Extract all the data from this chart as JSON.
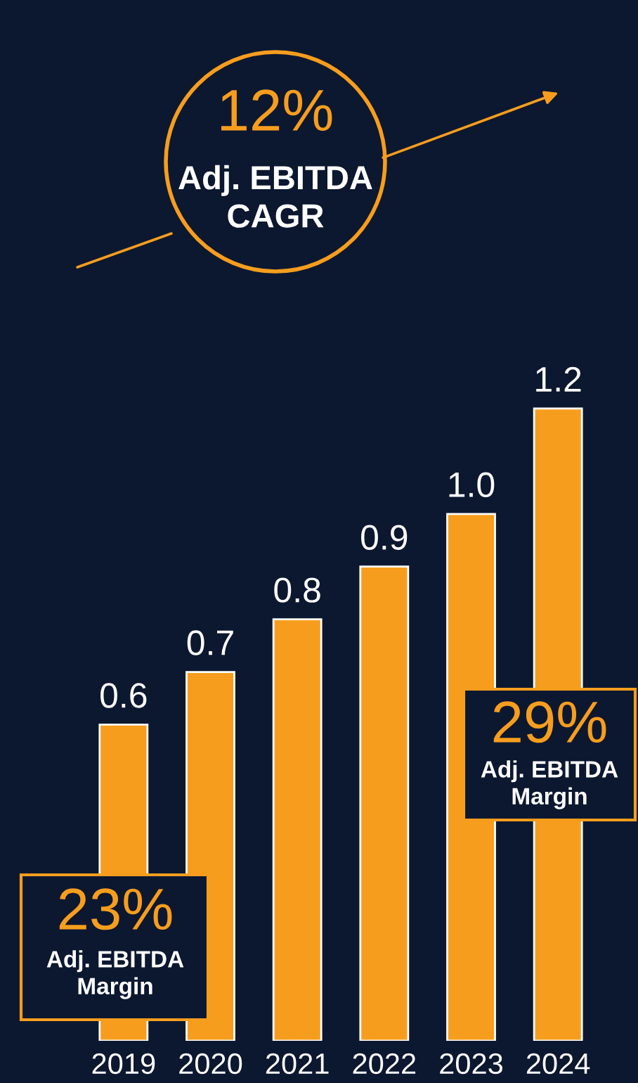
{
  "chart_data": {
    "type": "bar",
    "categories": [
      "2019",
      "2020",
      "2021",
      "2022",
      "2023",
      "2024"
    ],
    "values": [
      0.6,
      0.7,
      0.8,
      0.9,
      1.0,
      1.2
    ],
    "value_labels": [
      "0.6",
      "0.7",
      "0.8",
      "0.9",
      "1.0",
      "1.2"
    ],
    "color": "#f79d1e",
    "grid": false,
    "legend": false,
    "annotations": [
      "12%",
      "Adj. EBITDA\nCAGR",
      "23%",
      "Adj. EBITDA\nMargin",
      "29%",
      "Adj. EBITDA\nMargin"
    ]
  }
}
